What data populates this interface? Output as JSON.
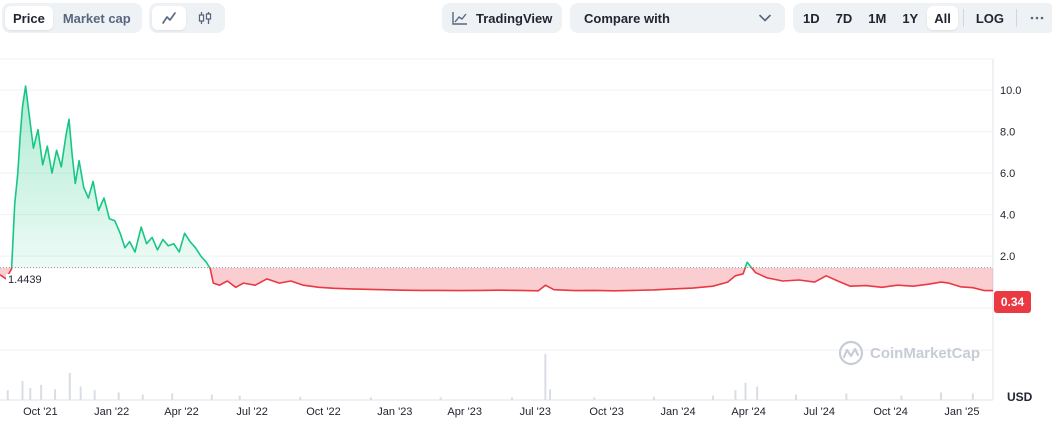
{
  "toolbar": {
    "type_tabs": [
      "Price",
      "Market cap"
    ],
    "active_type": "Price",
    "chart_styles": [
      "line-chart-icon",
      "candlestick-icon"
    ],
    "active_style": "line-chart-icon",
    "tradingview_label": "TradingView",
    "compare_label": "Compare with",
    "ranges": [
      "1D",
      "7D",
      "1M",
      "1Y",
      "All"
    ],
    "active_range": "All",
    "log_label": "LOG",
    "more_icon": "more-horizontal-icon"
  },
  "chart_meta": {
    "watermark": "CoinMarketCap",
    "currency_label": "USD",
    "baseline_label": "1.4439",
    "last_price_label": "0.34"
  },
  "colors": {
    "up": "#16c784",
    "down": "#ea3943",
    "grid": "#eff2f5",
    "text": "#222531"
  },
  "chart_data": {
    "type": "area",
    "baseline": 1.4439,
    "last_price": 0.34,
    "y_ticks": [
      "2.0",
      "4.0",
      "6.0",
      "8.0",
      "10.0"
    ],
    "y_tick_values": [
      2,
      4,
      6,
      8,
      10
    ],
    "ylim": [
      -0.5,
      11.5
    ],
    "x_ticks": [
      "Oct '21",
      "Jan '22",
      "Apr '22",
      "Jul '22",
      "Oct '22",
      "Jan '23",
      "Apr '23",
      "Jul '23",
      "Oct '23",
      "Jan '24",
      "Apr '24",
      "Jul '24",
      "Oct '24",
      "Jan '25"
    ],
    "x_tick_dates": [
      "2021-10-01",
      "2022-01-01",
      "2022-04-01",
      "2022-07-01",
      "2022-10-01",
      "2023-01-01",
      "2023-04-01",
      "2023-07-01",
      "2023-10-01",
      "2024-01-01",
      "2024-04-01",
      "2024-07-01",
      "2024-10-01",
      "2025-01-01"
    ],
    "xlim": [
      "2021-08-10",
      "2025-02-10"
    ],
    "series": [
      {
        "x": [
          "2021-08-10",
          "2021-08-18",
          "2021-08-25",
          "2021-08-29",
          "2021-09-02",
          "2021-09-05",
          "2021-09-08",
          "2021-09-12",
          "2021-09-16",
          "2021-09-22",
          "2021-09-28",
          "2021-10-04",
          "2021-10-10",
          "2021-10-16",
          "2021-10-22",
          "2021-10-28",
          "2021-11-03",
          "2021-11-07",
          "2021-11-11",
          "2021-11-15",
          "2021-11-20",
          "2021-11-26",
          "2021-12-02",
          "2021-12-08",
          "2021-12-15",
          "2021-12-22",
          "2021-12-29",
          "2022-01-05",
          "2022-01-12",
          "2022-01-18",
          "2022-01-24",
          "2022-01-31",
          "2022-02-08",
          "2022-02-15",
          "2022-02-22",
          "2022-03-01",
          "2022-03-08",
          "2022-03-15",
          "2022-03-22",
          "2022-03-29",
          "2022-04-05",
          "2022-04-12",
          "2022-04-19",
          "2022-04-26",
          "2022-05-03",
          "2022-05-08",
          "2022-05-12",
          "2022-05-20",
          "2022-05-30",
          "2022-06-10",
          "2022-06-20",
          "2022-07-05",
          "2022-07-20",
          "2022-08-05",
          "2022-08-20",
          "2022-09-05",
          "2022-09-25",
          "2022-10-15",
          "2022-11-05",
          "2022-11-25",
          "2022-12-15",
          "2023-01-10",
          "2023-02-05",
          "2023-03-01",
          "2023-03-25",
          "2023-04-20",
          "2023-05-15",
          "2023-06-10",
          "2023-07-05",
          "2023-07-14",
          "2023-07-25",
          "2023-08-20",
          "2023-09-15",
          "2023-10-10",
          "2023-11-05",
          "2023-12-01",
          "2023-12-25",
          "2024-01-20",
          "2024-02-15",
          "2024-03-05",
          "2024-03-15",
          "2024-03-25",
          "2024-03-30",
          "2024-04-10",
          "2024-04-25",
          "2024-05-15",
          "2024-06-05",
          "2024-06-25",
          "2024-07-10",
          "2024-07-25",
          "2024-08-10",
          "2024-08-30",
          "2024-09-20",
          "2024-10-10",
          "2024-10-30",
          "2024-11-20",
          "2024-12-05",
          "2024-12-15",
          "2024-12-30",
          "2025-01-15",
          "2025-01-30",
          "2025-02-10"
        ],
        "y": [
          1.1,
          0.9,
          1.4,
          4.5,
          6.0,
          7.8,
          9.2,
          10.2,
          9.0,
          7.2,
          8.1,
          6.4,
          7.3,
          6.0,
          7.1,
          6.3,
          7.8,
          8.6,
          6.9,
          5.5,
          6.6,
          5.3,
          4.8,
          5.6,
          4.2,
          4.8,
          3.8,
          3.7,
          3.1,
          2.4,
          2.7,
          2.2,
          3.4,
          2.6,
          2.9,
          2.3,
          2.8,
          2.5,
          2.6,
          2.2,
          3.1,
          2.7,
          2.4,
          2.0,
          1.7,
          1.4,
          0.7,
          0.6,
          0.8,
          0.5,
          0.7,
          0.6,
          0.9,
          0.7,
          0.8,
          0.6,
          0.5,
          0.45,
          0.42,
          0.4,
          0.38,
          0.36,
          0.35,
          0.35,
          0.34,
          0.35,
          0.36,
          0.35,
          0.33,
          0.6,
          0.38,
          0.34,
          0.35,
          0.33,
          0.35,
          0.37,
          0.42,
          0.46,
          0.55,
          0.75,
          1.05,
          1.15,
          1.7,
          1.2,
          0.95,
          0.8,
          0.85,
          0.75,
          1.05,
          0.8,
          0.55,
          0.58,
          0.5,
          0.6,
          0.55,
          0.65,
          0.75,
          0.7,
          0.52,
          0.48,
          0.34,
          0.34
        ]
      }
    ],
    "volume_dates": [
      "2021-08-20",
      "2021-09-08",
      "2021-09-18",
      "2021-10-02",
      "2021-10-20",
      "2021-11-08",
      "2021-11-22",
      "2021-12-10",
      "2022-01-10",
      "2022-02-10",
      "2022-03-20",
      "2022-05-10",
      "2022-06-15",
      "2022-09-01",
      "2022-12-01",
      "2023-03-01",
      "2023-06-01",
      "2023-07-14",
      "2023-07-20",
      "2023-09-15",
      "2023-12-01",
      "2024-02-15",
      "2024-03-15",
      "2024-03-28",
      "2024-04-12",
      "2024-06-01",
      "2024-08-05",
      "2024-10-15",
      "2024-12-05",
      "2025-01-15"
    ],
    "volume_values": [
      0.18,
      0.35,
      0.22,
      0.28,
      0.2,
      0.5,
      0.25,
      0.18,
      0.14,
      0.1,
      0.12,
      0.1,
      0.08,
      0.06,
      0.05,
      0.05,
      0.05,
      0.85,
      0.2,
      0.05,
      0.06,
      0.08,
      0.18,
      0.32,
      0.25,
      0.1,
      0.12,
      0.08,
      0.14,
      0.12
    ]
  }
}
